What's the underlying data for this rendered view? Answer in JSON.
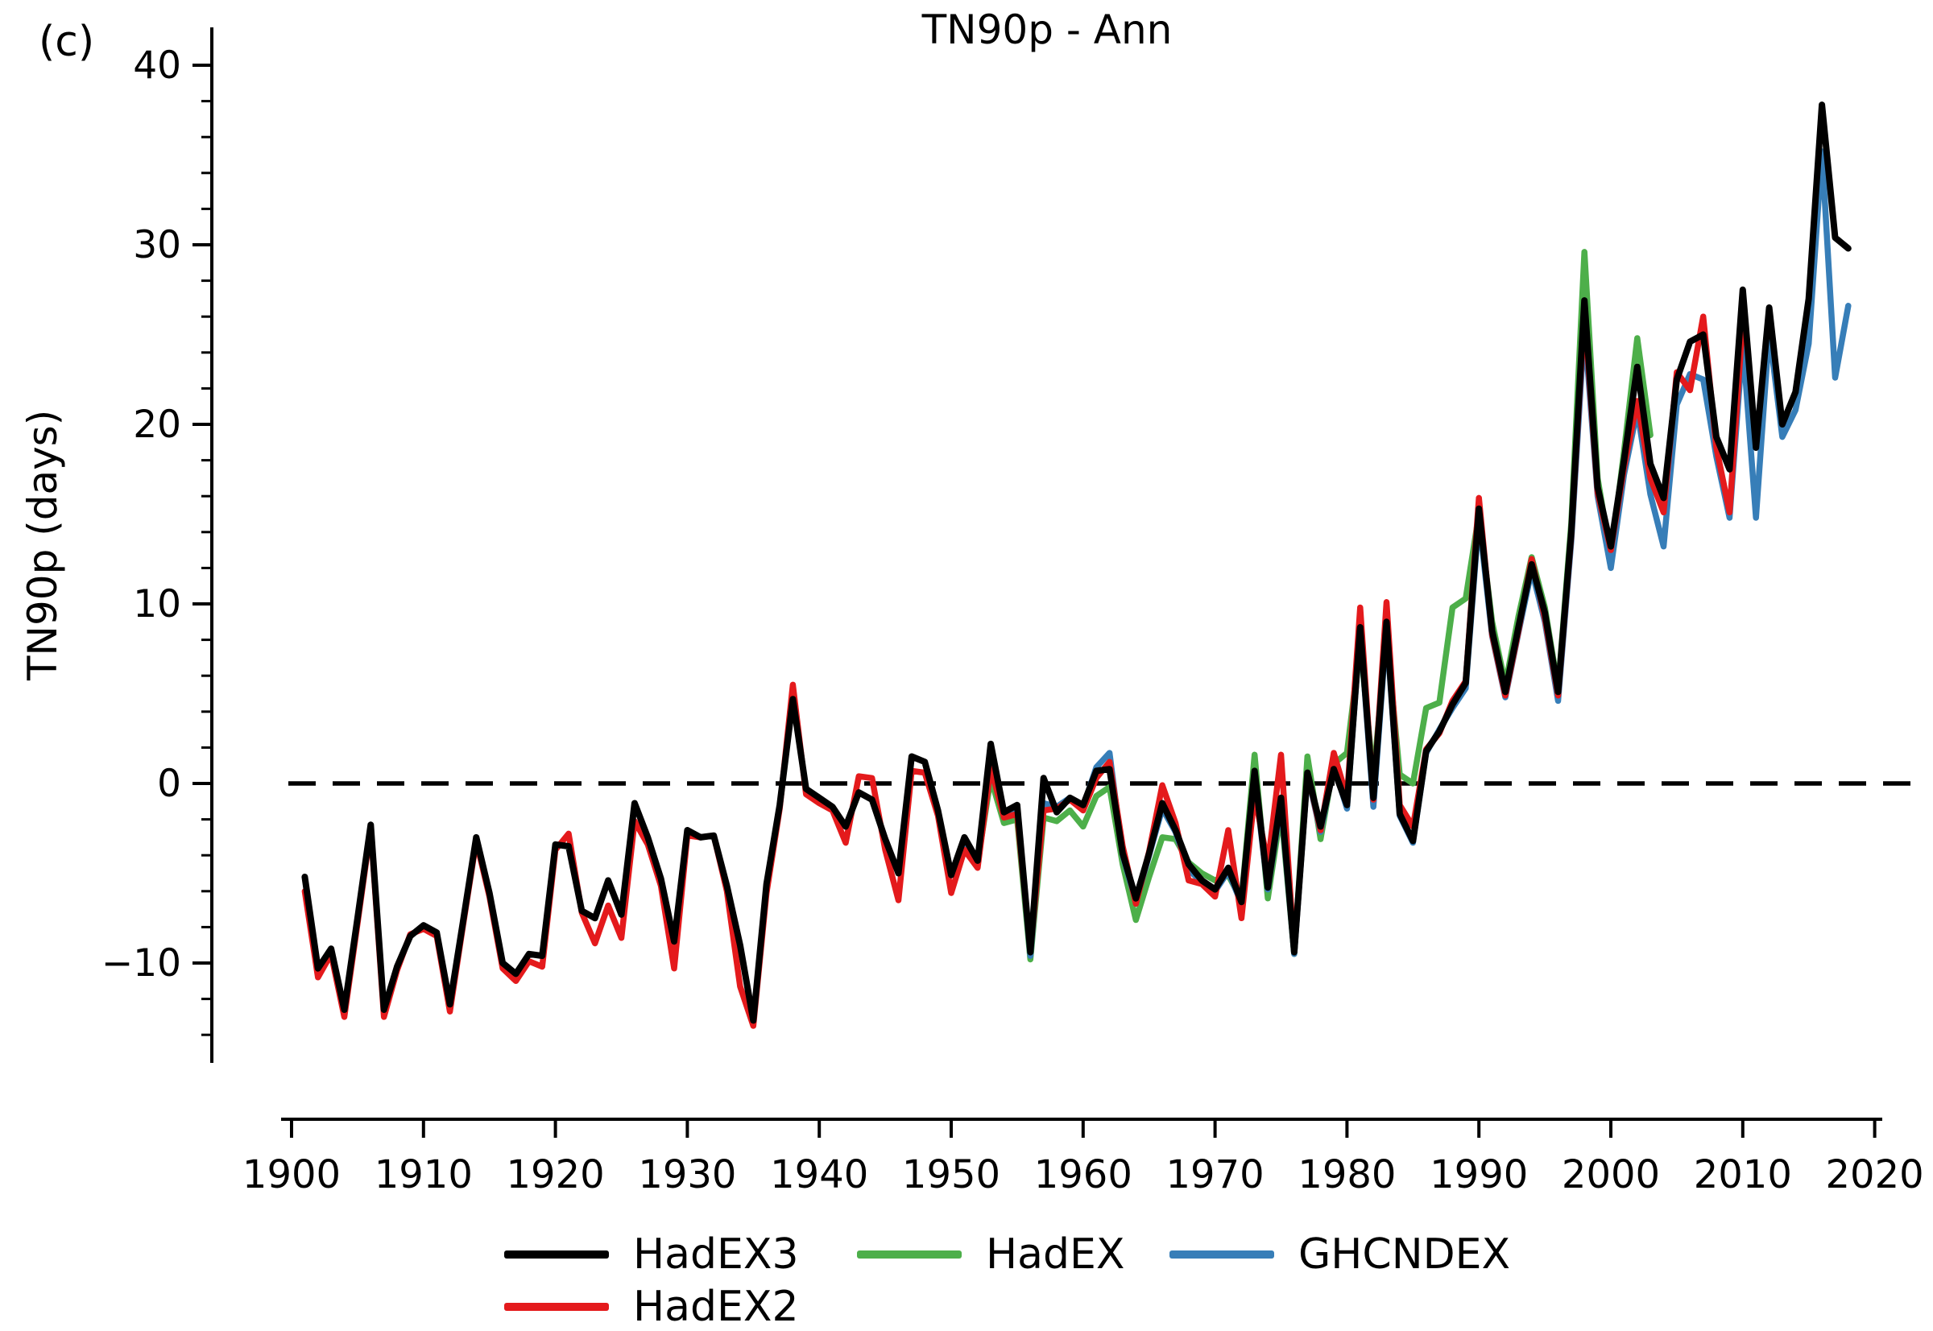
{
  "title": "TN90p - Ann",
  "panel_label": "(c)",
  "y_axis_label": "TN90p (days)",
  "legend": [
    {
      "id": "hadex3",
      "label": "HadEX3",
      "color": "#000000"
    },
    {
      "id": "hadex2",
      "label": "HadEX2",
      "color": "#e41a1c"
    },
    {
      "id": "hadex",
      "label": "HadEX",
      "color": "#4daf4a"
    },
    {
      "id": "ghcndex",
      "label": "GHCNDEX",
      "color": "#377eb8"
    }
  ],
  "chart_data": {
    "type": "line",
    "title": "TN90p - Ann",
    "xlabel": "",
    "ylabel": "TN90p (days)",
    "xlim": [
      1899,
      2021
    ],
    "ylim": [
      -15.5,
      42
    ],
    "grid": false,
    "legend_position": "below",
    "zero_line": {
      "value": 0,
      "style": "dashed",
      "color": "#000000"
    },
    "x_ticks": [
      1900,
      1910,
      1920,
      1930,
      1940,
      1950,
      1960,
      1970,
      1980,
      1990,
      2000,
      2010,
      2020
    ],
    "y_ticks": [
      40,
      30,
      20,
      10,
      0,
      -10
    ],
    "y_tick_labels": [
      "40",
      "30",
      "20",
      "10",
      "0",
      "−10"
    ],
    "y_minor_step": 2,
    "y_minor_range": [
      -14,
      40
    ],
    "series": [
      {
        "name": "HadEX",
        "color": "#4daf4a",
        "start_year": 1951,
        "values": [
          -3.5,
          -4.4,
          0.3,
          -2.2,
          -2.0,
          -9.8,
          -1.9,
          -2.1,
          -1.5,
          -2.4,
          -0.7,
          -0.2,
          -4.5,
          -7.6,
          -5.2,
          -3.0,
          -3.1,
          -4.4,
          -5.0,
          -5.4,
          -5.1,
          -6.5,
          1.6,
          -6.4,
          -1.5,
          -9.5,
          1.5,
          -3.1,
          1.1,
          1.7,
          7.8,
          0.3,
          8.3,
          0.5,
          0.0,
          4.2,
          4.5,
          9.8,
          10.3,
          15.0,
          9.0,
          5.5,
          9.3,
          12.6,
          9.8,
          5.3,
          14.5,
          29.6,
          17.0,
          12.6,
          18.5,
          24.8,
          19.4
        ]
      },
      {
        "name": "GHCNDEX",
        "color": "#377eb8",
        "start_year": 1951,
        "values": [
          -3.4,
          -4.2,
          0.8,
          -1.7,
          -1.4,
          -9.6,
          -1.1,
          -1.3,
          -0.8,
          -1.3,
          0.9,
          1.7,
          -4.0,
          -6.6,
          -4.0,
          -1.4,
          -2.7,
          -4.8,
          -5.5,
          -6.0,
          -4.9,
          -6.7,
          0.3,
          -5.9,
          -1.1,
          -9.5,
          0.5,
          -2.7,
          1.0,
          -1.4,
          8.6,
          -1.3,
          8.6,
          -1.8,
          -3.3,
          1.7,
          3.0,
          4.2,
          5.3,
          14.8,
          8.2,
          4.8,
          8.4,
          11.9,
          9.0,
          4.6,
          13.5,
          25.5,
          16.0,
          12.0,
          17.2,
          20.8,
          16.1,
          13.2,
          21.1,
          22.8,
          22.5,
          18.2,
          14.8,
          24.6,
          14.8,
          25.2,
          19.3,
          20.8,
          24.5,
          35.2,
          22.6,
          26.6
        ]
      },
      {
        "name": "HadEX2",
        "color": "#e41a1c",
        "start_year": 1901,
        "values": [
          -6.0,
          -10.8,
          -9.5,
          -13.0,
          -7.8,
          -2.5,
          -13.0,
          -10.4,
          -8.4,
          -8.1,
          -8.5,
          -12.7,
          -7.9,
          -3.2,
          -6.3,
          -10.3,
          -11.0,
          -9.9,
          -10.2,
          -3.7,
          -2.8,
          -7.2,
          -8.9,
          -6.8,
          -8.6,
          -2.1,
          -3.4,
          -5.7,
          -10.3,
          -2.9,
          -3.0,
          -2.9,
          -6.0,
          -11.3,
          -13.5,
          -6.1,
          -1.4,
          5.5,
          -0.6,
          -1.1,
          -1.5,
          -3.3,
          0.4,
          0.3,
          -3.7,
          -6.5,
          0.7,
          0.6,
          -1.8,
          -6.1,
          -3.7,
          -4.7,
          0.9,
          -1.9,
          -1.7,
          -9.3,
          -1.5,
          -1.4,
          -0.9,
          -1.5,
          0.3,
          1.2,
          -3.5,
          -6.7,
          -3.8,
          -0.1,
          -2.2,
          -5.4,
          -5.6,
          -6.3,
          -2.6,
          -7.5,
          -0.6,
          -4.5,
          1.6,
          -9.4,
          0.6,
          -2.6,
          1.7,
          -0.8,
          9.8,
          -0.9,
          10.1,
          -1.2,
          -2.4,
          1.9,
          2.8,
          4.6,
          5.7,
          15.9,
          8.3,
          4.9,
          8.5,
          12.5,
          9.2,
          4.9,
          13.8,
          26.3,
          16.2,
          13.0,
          17.6,
          21.3,
          17.0,
          15.1,
          22.9,
          21.9,
          26.0,
          18.7,
          15.1,
          25.8
        ]
      },
      {
        "name": "HadEX3",
        "color": "#000000",
        "start_year": 1901,
        "values": [
          -5.2,
          -10.3,
          -9.2,
          -12.6,
          -7.5,
          -2.3,
          -12.6,
          -10.2,
          -8.5,
          -7.9,
          -8.3,
          -12.3,
          -7.7,
          -3.0,
          -6.1,
          -10.0,
          -10.6,
          -9.5,
          -9.6,
          -3.4,
          -3.5,
          -7.1,
          -7.5,
          -5.4,
          -7.3,
          -1.1,
          -3.0,
          -5.3,
          -8.8,
          -2.6,
          -3.0,
          -2.9,
          -5.7,
          -9.0,
          -13.2,
          -5.6,
          -1.2,
          4.7,
          -0.3,
          -0.8,
          -1.3,
          -2.4,
          -0.5,
          -0.9,
          -3.1,
          -5.0,
          1.5,
          1.2,
          -1.5,
          -5.1,
          -3.0,
          -4.3,
          2.2,
          -1.6,
          -1.2,
          -9.4,
          0.3,
          -1.6,
          -0.8,
          -1.2,
          0.7,
          0.8,
          -3.9,
          -6.4,
          -3.9,
          -1.1,
          -2.6,
          -4.5,
          -5.4,
          -5.9,
          -4.7,
          -6.6,
          0.7,
          -5.8,
          -0.8,
          -9.4,
          0.6,
          -2.4,
          0.8,
          -1.2,
          8.7,
          -0.8,
          9.0,
          -1.7,
          -3.2,
          1.8,
          2.9,
          4.4,
          5.6,
          15.3,
          8.5,
          5.1,
          8.7,
          12.2,
          9.5,
          5.1,
          14.0,
          26.9,
          16.5,
          13.2,
          18.0,
          23.2,
          17.8,
          15.9,
          22.5,
          24.6,
          25.0,
          19.3,
          17.5,
          27.5,
          18.7,
          26.5,
          20.0,
          21.8,
          27.0,
          37.8,
          30.4,
          29.8
        ]
      }
    ]
  }
}
